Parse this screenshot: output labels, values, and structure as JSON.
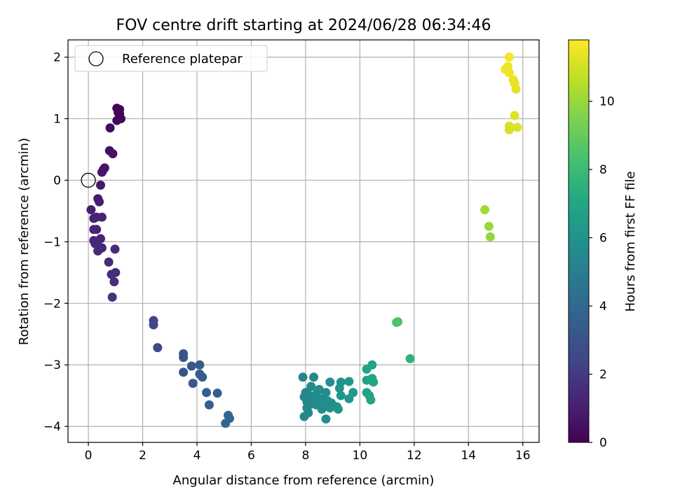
{
  "chart_data": {
    "type": "scatter",
    "title": "FOV centre drift starting at 2024/06/28 06:34:46",
    "xlabel": "Angular distance from reference (arcmin)",
    "ylabel": "Rotation from reference (arcmin)",
    "xlim": [
      -0.75,
      16.6
    ],
    "ylim": [
      -4.26,
      2.28
    ],
    "xticks": [
      0,
      2,
      4,
      6,
      8,
      10,
      12,
      14,
      16
    ],
    "yticks": [
      -4,
      -3,
      -2,
      -1,
      0,
      1,
      2
    ],
    "grid": true,
    "legend": {
      "position": "upper-left",
      "entries": [
        {
          "label": "Reference platepar",
          "marker": "open-circle"
        }
      ]
    },
    "reference_point": {
      "x": 0,
      "y": 0
    },
    "colorbar": {
      "label": "Hours from first FF file",
      "colormap": "viridis",
      "range": [
        0,
        11.8
      ],
      "ticks": [
        0,
        2,
        4,
        6,
        8,
        10
      ]
    },
    "points": [
      {
        "x": 1.05,
        "y": 1.17,
        "c": 0.05
      },
      {
        "x": 1.15,
        "y": 1.15,
        "c": 0.08
      },
      {
        "x": 1.1,
        "y": 1.1,
        "c": 0.1
      },
      {
        "x": 1.15,
        "y": 1.08,
        "c": 0.12
      },
      {
        "x": 1.2,
        "y": 1.0,
        "c": 0.15
      },
      {
        "x": 1.05,
        "y": 0.97,
        "c": 0.18
      },
      {
        "x": 0.8,
        "y": 0.85,
        "c": 0.3
      },
      {
        "x": 0.78,
        "y": 0.48,
        "c": 0.45
      },
      {
        "x": 0.9,
        "y": 0.43,
        "c": 0.5
      },
      {
        "x": 0.6,
        "y": 0.2,
        "c": 0.6
      },
      {
        "x": 0.55,
        "y": 0.17,
        "c": 0.65
      },
      {
        "x": 0.5,
        "y": 0.13,
        "c": 0.7
      },
      {
        "x": 0.45,
        "y": -0.08,
        "c": 0.8
      },
      {
        "x": 0.35,
        "y": -0.3,
        "c": 0.9
      },
      {
        "x": 0.4,
        "y": -0.35,
        "c": 0.95
      },
      {
        "x": 0.1,
        "y": -0.48,
        "c": 1.0
      },
      {
        "x": 0.3,
        "y": -0.6,
        "c": 1.05
      },
      {
        "x": 0.5,
        "y": -0.6,
        "c": 1.1
      },
      {
        "x": 0.2,
        "y": -0.62,
        "c": 1.12
      },
      {
        "x": 0.2,
        "y": -0.8,
        "c": 1.15
      },
      {
        "x": 0.3,
        "y": -0.8,
        "c": 1.18
      },
      {
        "x": 0.45,
        "y": -0.95,
        "c": 1.2
      },
      {
        "x": 0.2,
        "y": -0.98,
        "c": 1.22
      },
      {
        "x": 0.3,
        "y": -1.0,
        "c": 1.25
      },
      {
        "x": 0.25,
        "y": -1.03,
        "c": 1.28
      },
      {
        "x": 0.5,
        "y": -1.1,
        "c": 1.3
      },
      {
        "x": 0.4,
        "y": -1.12,
        "c": 1.32
      },
      {
        "x": 0.35,
        "y": -1.15,
        "c": 1.35
      },
      {
        "x": 0.98,
        "y": -1.12,
        "c": 1.4
      },
      {
        "x": 0.75,
        "y": -1.33,
        "c": 1.45
      },
      {
        "x": 1.0,
        "y": -1.5,
        "c": 1.5
      },
      {
        "x": 0.85,
        "y": -1.53,
        "c": 1.55
      },
      {
        "x": 0.95,
        "y": -1.65,
        "c": 1.6
      },
      {
        "x": 0.88,
        "y": -1.9,
        "c": 1.7
      },
      {
        "x": 2.4,
        "y": -2.28,
        "c": 2.4
      },
      {
        "x": 2.4,
        "y": -2.35,
        "c": 2.45
      },
      {
        "x": 2.55,
        "y": -2.72,
        "c": 2.6
      },
      {
        "x": 3.5,
        "y": -2.82,
        "c": 3.0
      },
      {
        "x": 3.5,
        "y": -2.88,
        "c": 3.05
      },
      {
        "x": 3.8,
        "y": -3.02,
        "c": 3.2
      },
      {
        "x": 4.1,
        "y": -3.0,
        "c": 3.3
      },
      {
        "x": 3.5,
        "y": -3.12,
        "c": 3.1
      },
      {
        "x": 4.1,
        "y": -3.15,
        "c": 3.35
      },
      {
        "x": 4.2,
        "y": -3.2,
        "c": 3.4
      },
      {
        "x": 3.85,
        "y": -3.3,
        "c": 3.25
      },
      {
        "x": 4.35,
        "y": -3.45,
        "c": 3.5
      },
      {
        "x": 4.75,
        "y": -3.46,
        "c": 3.6
      },
      {
        "x": 4.45,
        "y": -3.65,
        "c": 3.55
      },
      {
        "x": 5.15,
        "y": -3.82,
        "c": 3.9
      },
      {
        "x": 5.2,
        "y": -3.87,
        "c": 3.95
      },
      {
        "x": 5.05,
        "y": -3.95,
        "c": 3.85
      },
      {
        "x": 7.9,
        "y": -3.2,
        "c": 5.4
      },
      {
        "x": 8.3,
        "y": -3.2,
        "c": 5.6
      },
      {
        "x": 8.9,
        "y": -3.28,
        "c": 5.8
      },
      {
        "x": 9.3,
        "y": -3.28,
        "c": 6.0
      },
      {
        "x": 9.6,
        "y": -3.27,
        "c": 6.2
      },
      {
        "x": 8.2,
        "y": -3.35,
        "c": 5.55
      },
      {
        "x": 8.5,
        "y": -3.4,
        "c": 5.7
      },
      {
        "x": 9.25,
        "y": -3.38,
        "c": 6.05
      },
      {
        "x": 8.0,
        "y": -3.45,
        "c": 5.45
      },
      {
        "x": 8.1,
        "y": -3.48,
        "c": 5.5
      },
      {
        "x": 8.4,
        "y": -3.47,
        "c": 5.65
      },
      {
        "x": 8.75,
        "y": -3.45,
        "c": 5.75
      },
      {
        "x": 9.75,
        "y": -3.45,
        "c": 6.25
      },
      {
        "x": 7.95,
        "y": -3.52,
        "c": 5.42
      },
      {
        "x": 8.2,
        "y": -3.55,
        "c": 5.58
      },
      {
        "x": 8.55,
        "y": -3.55,
        "c": 5.72
      },
      {
        "x": 9.3,
        "y": -3.5,
        "c": 6.1
      },
      {
        "x": 8.05,
        "y": -3.6,
        "c": 5.48
      },
      {
        "x": 8.3,
        "y": -3.6,
        "c": 5.62
      },
      {
        "x": 8.8,
        "y": -3.58,
        "c": 5.78
      },
      {
        "x": 9.6,
        "y": -3.55,
        "c": 6.22
      },
      {
        "x": 8.15,
        "y": -3.65,
        "c": 5.52
      },
      {
        "x": 8.4,
        "y": -3.65,
        "c": 5.68
      },
      {
        "x": 8.65,
        "y": -3.65,
        "c": 5.74
      },
      {
        "x": 8.95,
        "y": -3.62,
        "c": 5.85
      },
      {
        "x": 9.15,
        "y": -3.68,
        "c": 5.95
      },
      {
        "x": 8.05,
        "y": -3.7,
        "c": 5.47
      },
      {
        "x": 8.6,
        "y": -3.72,
        "c": 5.73
      },
      {
        "x": 8.9,
        "y": -3.7,
        "c": 5.82
      },
      {
        "x": 9.2,
        "y": -3.72,
        "c": 5.98
      },
      {
        "x": 8.1,
        "y": -3.78,
        "c": 5.5
      },
      {
        "x": 7.95,
        "y": -3.84,
        "c": 5.44
      },
      {
        "x": 8.75,
        "y": -3.88,
        "c": 5.76
      },
      {
        "x": 10.45,
        "y": -3.0,
        "c": 6.9
      },
      {
        "x": 10.25,
        "y": -3.07,
        "c": 6.8
      },
      {
        "x": 10.25,
        "y": -3.25,
        "c": 6.82
      },
      {
        "x": 10.45,
        "y": -3.22,
        "c": 6.92
      },
      {
        "x": 10.5,
        "y": -3.28,
        "c": 6.95
      },
      {
        "x": 10.25,
        "y": -3.45,
        "c": 6.85
      },
      {
        "x": 10.35,
        "y": -3.5,
        "c": 6.88
      },
      {
        "x": 10.4,
        "y": -3.57,
        "c": 6.9
      },
      {
        "x": 11.35,
        "y": -2.31,
        "c": 8.4
      },
      {
        "x": 11.4,
        "y": -2.3,
        "c": 8.45
      },
      {
        "x": 11.85,
        "y": -2.9,
        "c": 7.6
      },
      {
        "x": 14.6,
        "y": -0.48,
        "c": 10.1
      },
      {
        "x": 14.75,
        "y": -0.75,
        "c": 10.0
      },
      {
        "x": 14.8,
        "y": -0.92,
        "c": 9.9
      },
      {
        "x": 15.5,
        "y": 2.0,
        "c": 11.6
      },
      {
        "x": 15.45,
        "y": 1.85,
        "c": 11.55
      },
      {
        "x": 15.35,
        "y": 1.8,
        "c": 11.5
      },
      {
        "x": 15.5,
        "y": 1.75,
        "c": 11.5
      },
      {
        "x": 15.65,
        "y": 1.63,
        "c": 11.45
      },
      {
        "x": 15.7,
        "y": 1.57,
        "c": 11.4
      },
      {
        "x": 15.75,
        "y": 1.48,
        "c": 11.35
      },
      {
        "x": 15.7,
        "y": 1.05,
        "c": 11.2
      },
      {
        "x": 15.5,
        "y": 0.88,
        "c": 11.1
      },
      {
        "x": 15.5,
        "y": 0.82,
        "c": 11.05
      },
      {
        "x": 15.8,
        "y": 0.86,
        "c": 11.15
      }
    ]
  }
}
